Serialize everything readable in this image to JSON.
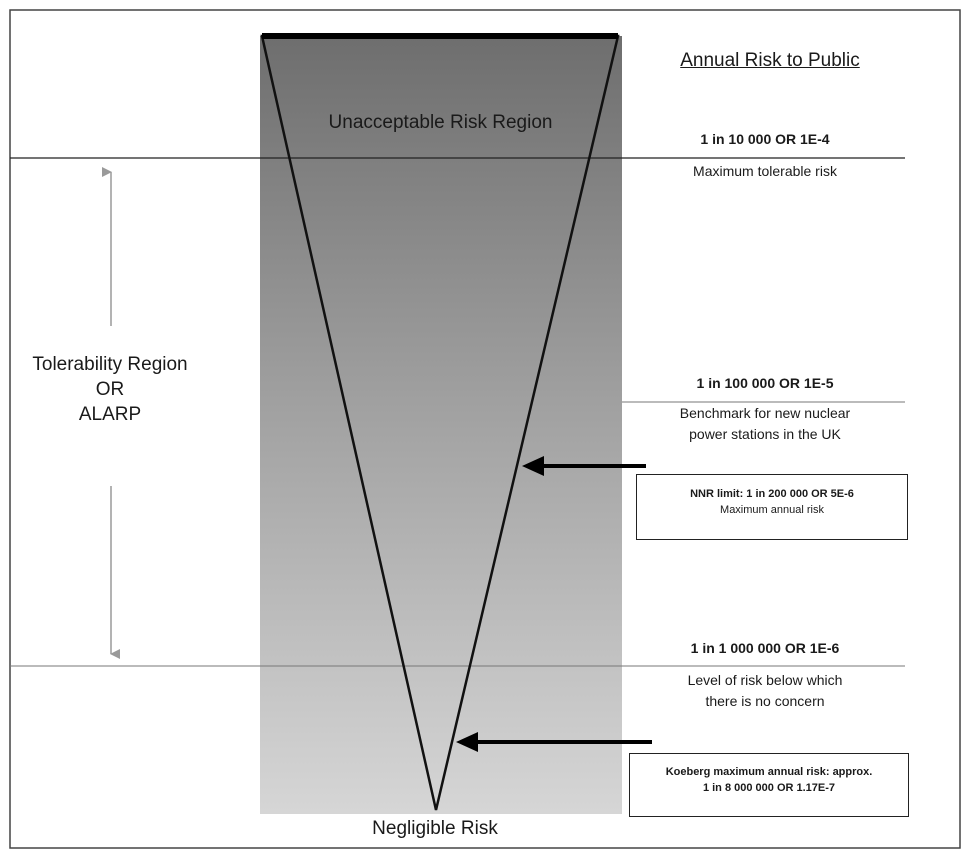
{
  "diagram": {
    "header": "Annual Risk to Public",
    "unacceptable_region": "Unacceptable Risk Region",
    "tolerability": {
      "line1": "Tolerability Region",
      "line2": "OR",
      "line3": "ALARP"
    },
    "negligible": "Negligible Risk",
    "levels": [
      {
        "title": "1 in 10 000 OR 1E-4",
        "description": [
          "Maximum tolerable risk"
        ]
      },
      {
        "title": "1 in 100 000 OR 1E-5",
        "description": [
          "Benchmark for new nuclear",
          "power stations in the UK"
        ]
      },
      {
        "title": "1 in 1 000 000 OR 1E-6",
        "description": [
          "Level of risk below which",
          "there is no concern"
        ]
      }
    ],
    "callouts": [
      {
        "title": "NNR limit: 1 in 200 000 OR 5E-6",
        "subtitle": "Maximum annual risk"
      },
      {
        "line1": "Koeberg maximum annual risk: approx.",
        "line2": "1 in 8 000 000 OR 1.17E-7"
      }
    ]
  }
}
